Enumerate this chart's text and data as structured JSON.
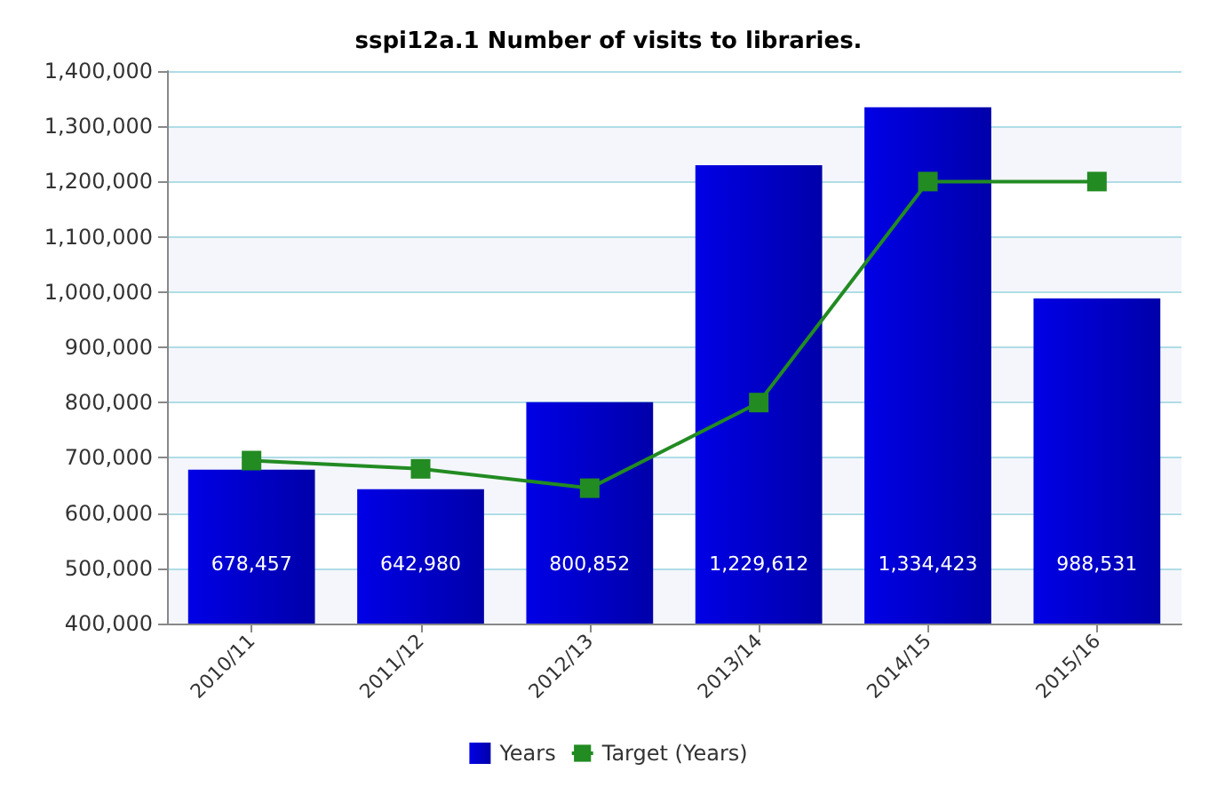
{
  "chart_data": {
    "type": "bar",
    "title": "sspi12a.1 Number of visits to libraries.",
    "categories": [
      "2010/11",
      "2011/12",
      "2012/13",
      "2013/14",
      "2014/15",
      "2015/16"
    ],
    "series": [
      {
        "name": "Years",
        "color": "#0000e6",
        "values": [
          678457,
          642980,
          800852,
          1229612,
          1334423,
          988531
        ],
        "value_labels": [
          "678,457",
          "642,980",
          "800,852",
          "1,229,612",
          "1,334,423",
          "988,531"
        ]
      },
      {
        "name": "Target (Years)",
        "type": "line",
        "color": "#228b22",
        "values": [
          695000,
          680000,
          645000,
          800000,
          1200000,
          1200000
        ],
        "marker": "square"
      }
    ],
    "ylim": [
      400000,
      1400000
    ],
    "yticks": [
      {
        "value": 400000,
        "label": "400,000"
      },
      {
        "value": 500000,
        "label": "500,000"
      },
      {
        "value": 600000,
        "label": "600,000"
      },
      {
        "value": 700000,
        "label": "700,000"
      },
      {
        "value": 800000,
        "label": "800,000"
      },
      {
        "value": 900000,
        "label": "900,000"
      },
      {
        "value": 1000000,
        "label": "1,000,000"
      },
      {
        "value": 1100000,
        "label": "1,100,000"
      },
      {
        "value": 1200000,
        "label": "1,200,000"
      },
      {
        "value": 1300000,
        "label": "1,300,000"
      },
      {
        "value": 1400000,
        "label": "1,400,000"
      }
    ],
    "grid": "y",
    "legend": "bottom"
  }
}
